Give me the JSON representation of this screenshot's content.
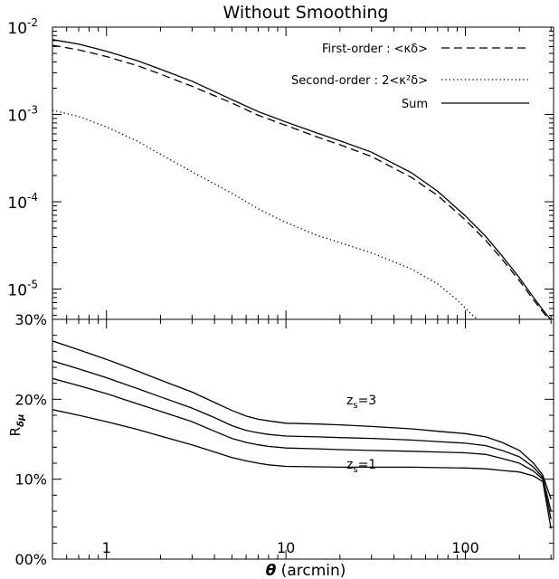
{
  "chart_data": [
    {
      "type": "line",
      "title": "Without Smoothing",
      "xlabel": "",
      "ylabel": "",
      "xscale": "log",
      "yscale": "log",
      "xlim": [
        0.5,
        310
      ],
      "ylim": [
        4.5e-06,
        0.01
      ],
      "grid": false,
      "legend_position": "top-right",
      "y_ticks": [
        {
          "base": "10",
          "exp": "-2",
          "value": 0.01
        },
        {
          "base": "10",
          "exp": "-3",
          "value": 0.001
        },
        {
          "base": "10",
          "exp": "-4",
          "value": 0.0001
        },
        {
          "base": "10",
          "exp": "-5",
          "value": 1e-05
        }
      ],
      "series": [
        {
          "name": "First-order : <κδ>",
          "dash": "dashed",
          "x": [
            0.5,
            0.7,
            1,
            1.5,
            2,
            3,
            5,
            7,
            10,
            15,
            20,
            30,
            50,
            70,
            100,
            130,
            160,
            200,
            240,
            270,
            300
          ],
          "y": [
            0.0062,
            0.0055,
            0.0046,
            0.0036,
            0.0029,
            0.0021,
            0.00135,
            0.00098,
            0.00075,
            0.00055,
            0.00045,
            0.00033,
            0.00019,
            0.000118,
            6.2e-05,
            3.6e-05,
            2.2e-05,
            1.25e-05,
            7.5e-06,
            5.5e-06,
            4.2e-06
          ]
        },
        {
          "name": "Second-order : 2<κ²δ>",
          "dash": "dotted",
          "x": [
            0.5,
            0.7,
            1,
            1.5,
            2,
            3,
            5,
            7,
            10,
            15,
            20,
            30,
            50,
            70,
            90,
            110,
            120
          ],
          "y": [
            0.00112,
            0.00095,
            0.00072,
            0.00049,
            0.00035,
            0.00022,
            0.000125,
            8.3e-05,
            5.8e-05,
            4.1e-05,
            3.4e-05,
            2.6e-05,
            1.7e-05,
            1.15e-05,
            7.5e-06,
            5e-06,
            4.3e-06
          ]
        },
        {
          "name": "Sum",
          "dash": "solid",
          "x": [
            0.5,
            0.7,
            1,
            1.5,
            2,
            3,
            5,
            7,
            10,
            15,
            20,
            30,
            50,
            70,
            100,
            130,
            160,
            200,
            240,
            270,
            300
          ],
          "y": [
            0.0072,
            0.0064,
            0.0053,
            0.0041,
            0.0033,
            0.0024,
            0.00148,
            0.00108,
            0.00082,
            0.00061,
            0.0005,
            0.00037,
            0.000215,
            0.000132,
            6.9e-05,
            4e-05,
            2.4e-05,
            1.35e-05,
            8e-06,
            5.8e-06,
            4.4e-06
          ]
        }
      ]
    },
    {
      "type": "line",
      "xlabel": "θ (arcmin)",
      "ylabel": "Rδμ",
      "xscale": "log",
      "yscale": "linear",
      "xlim": [
        0.5,
        310
      ],
      "ylim": [
        0,
        30
      ],
      "grid": false,
      "x_ticks": [
        "1",
        "10",
        "100"
      ],
      "y_ticks": [
        "00%",
        "10%",
        "20%",
        "30%"
      ],
      "annotations": [
        {
          "text": "z",
          "sub": "s",
          "rest": "=3"
        },
        {
          "text": "z",
          "sub": "s",
          "rest": "=1"
        }
      ],
      "series": [
        {
          "x": [
            0.5,
            0.7,
            1,
            1.5,
            2,
            3,
            4,
            5,
            6,
            7,
            8,
            10,
            15,
            20,
            30,
            50,
            70,
            100,
            130,
            160,
            200,
            240,
            270,
            300
          ],
          "y": [
            27.3,
            26.2,
            25.0,
            23.5,
            22.4,
            20.9,
            19.6,
            18.6,
            17.9,
            17.5,
            17.3,
            17.0,
            16.9,
            16.8,
            16.6,
            16.3,
            16.0,
            15.7,
            15.3,
            14.6,
            13.6,
            12.0,
            10.5,
            7.5
          ]
        },
        {
          "x": [
            0.5,
            0.7,
            1,
            1.5,
            2,
            3,
            4,
            5,
            6,
            7,
            8,
            10,
            15,
            20,
            30,
            50,
            70,
            100,
            130,
            160,
            200,
            240,
            270,
            300
          ],
          "y": [
            24.8,
            23.8,
            22.7,
            21.3,
            20.3,
            18.9,
            17.7,
            16.7,
            16.1,
            15.8,
            15.6,
            15.4,
            15.3,
            15.2,
            15.1,
            14.9,
            14.7,
            14.5,
            14.2,
            13.6,
            12.8,
            11.5,
            10.2,
            6.0
          ]
        },
        {
          "x": [
            0.5,
            0.7,
            1,
            1.5,
            2,
            3,
            4,
            5,
            6,
            7,
            8,
            10,
            15,
            20,
            30,
            50,
            70,
            100,
            130,
            160,
            200,
            240,
            270,
            300
          ],
          "y": [
            22.6,
            21.7,
            20.7,
            19.4,
            18.5,
            17.2,
            16.0,
            15.1,
            14.6,
            14.3,
            14.1,
            13.9,
            13.8,
            13.7,
            13.6,
            13.5,
            13.4,
            13.3,
            13.1,
            12.6,
            12.0,
            11.0,
            10.0,
            5.0
          ]
        },
        {
          "x": [
            0.5,
            0.7,
            1,
            1.5,
            2,
            3,
            4,
            5,
            6,
            7,
            8,
            10,
            15,
            20,
            30,
            50,
            70,
            100,
            130,
            160,
            200,
            240,
            270,
            300
          ],
          "y": [
            18.7,
            18.0,
            17.2,
            16.2,
            15.4,
            14.3,
            13.4,
            12.7,
            12.3,
            12.0,
            11.8,
            11.6,
            11.55,
            11.5,
            11.5,
            11.5,
            11.45,
            11.4,
            11.3,
            11.1,
            10.9,
            10.4,
            9.7,
            3.8
          ]
        }
      ]
    }
  ]
}
